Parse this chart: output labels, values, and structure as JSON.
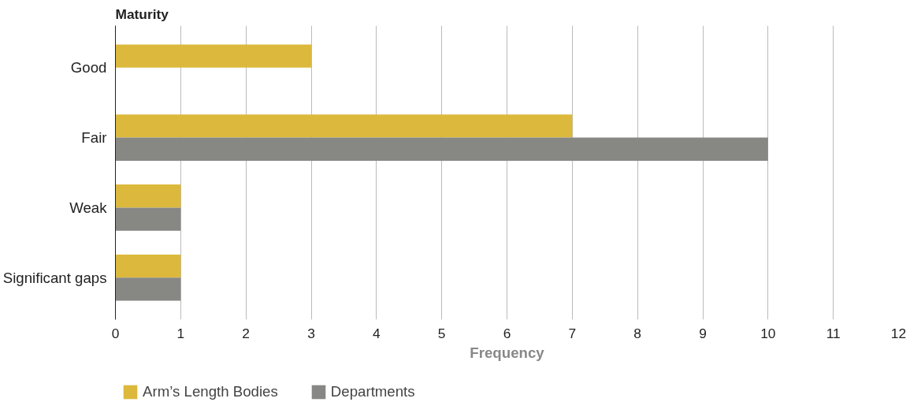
{
  "chart_data": {
    "type": "bar",
    "orientation": "horizontal",
    "ylabel": "Maturity",
    "xlabel": "Frequency",
    "categories": [
      "Good",
      "Fair",
      "Weak",
      "Significant gaps"
    ],
    "series": [
      {
        "name": "Arm’s Length Bodies",
        "color": "#dcb93c",
        "values": [
          3,
          7,
          1,
          1
        ]
      },
      {
        "name": "Departments",
        "color": "#878784",
        "values": [
          null,
          10,
          1,
          1
        ]
      }
    ],
    "xlim": [
      0,
      12
    ],
    "xticks": [
      0,
      1,
      2,
      3,
      4,
      5,
      6,
      7,
      8,
      9,
      10,
      11,
      12
    ],
    "grid": "x",
    "legend": "bottom left"
  }
}
